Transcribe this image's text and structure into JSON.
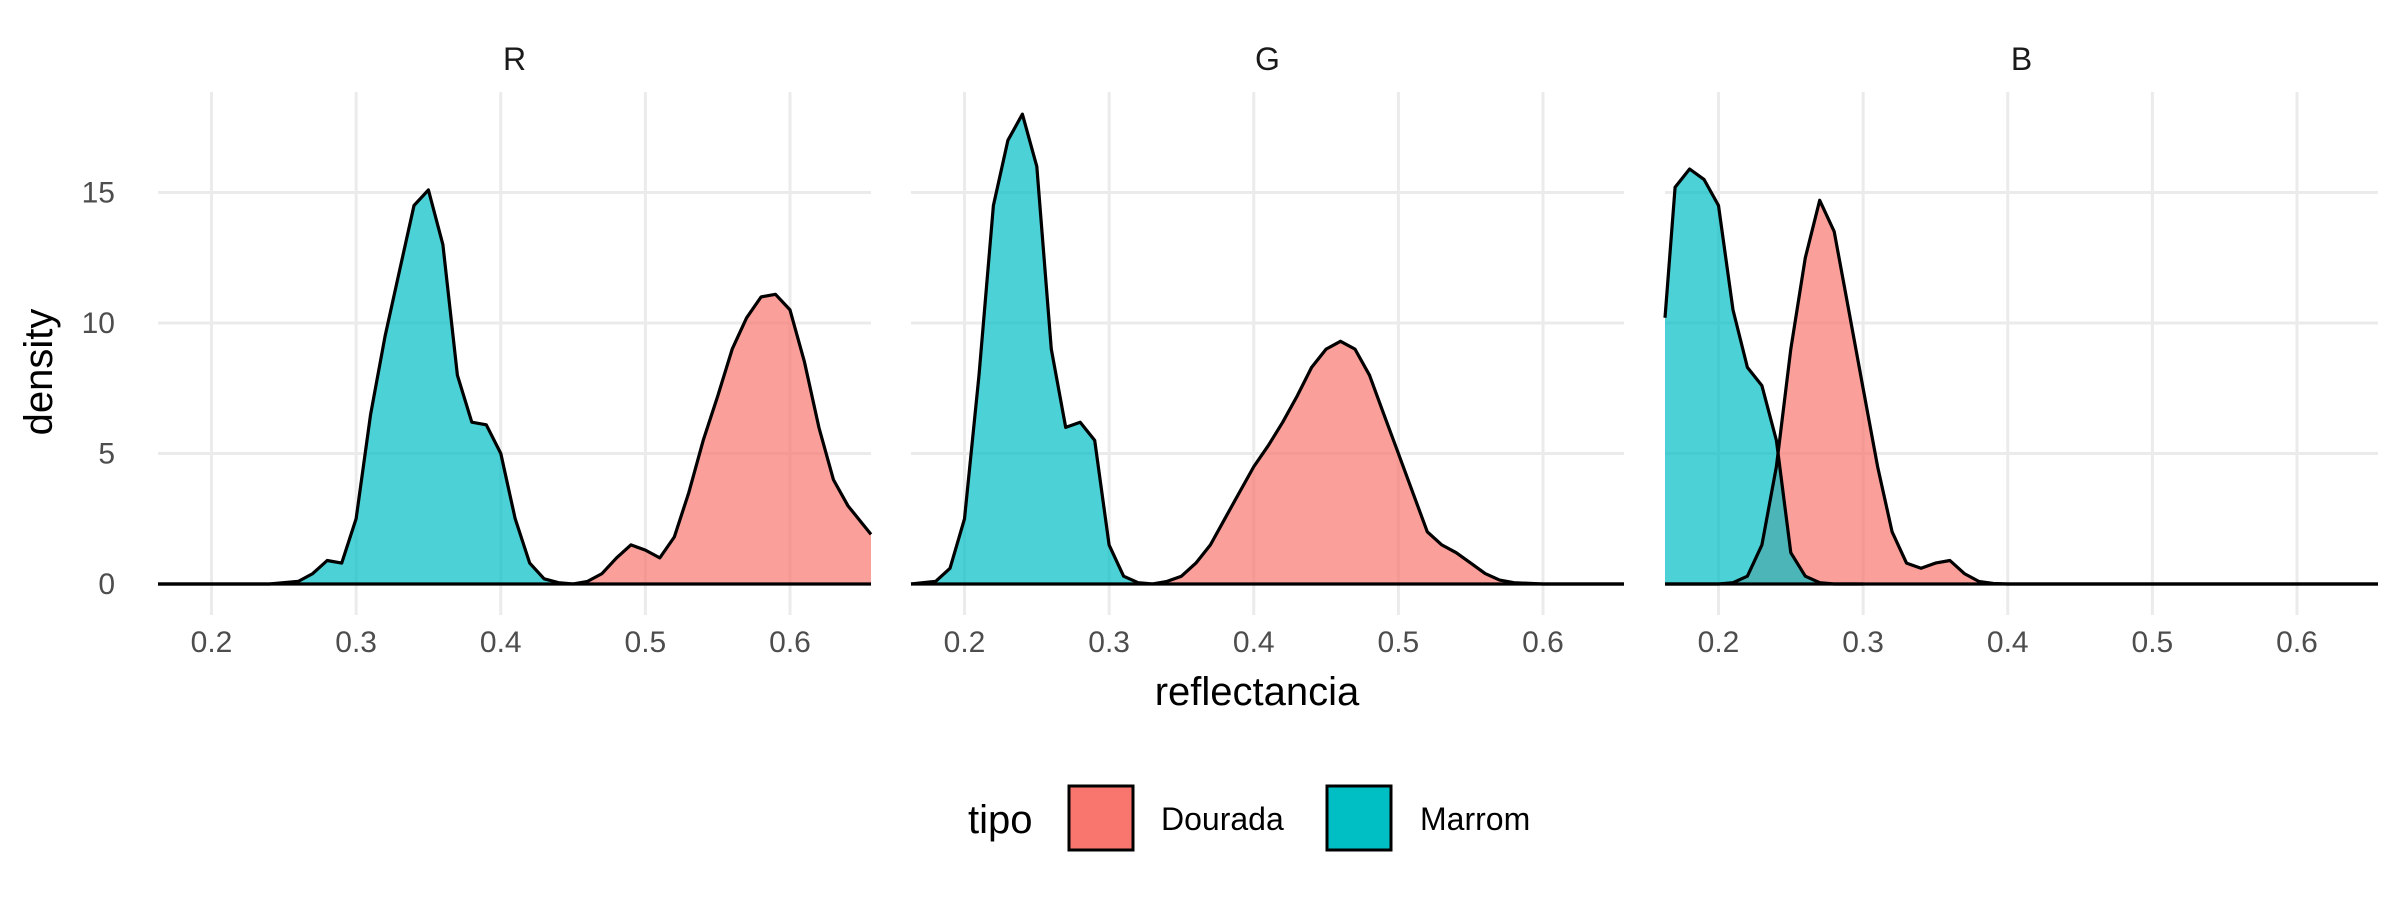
{
  "chart_data": {
    "type": "area",
    "xlabel": "reflectancia",
    "ylabel": "density",
    "ylim": [
      0,
      18.5
    ],
    "xlim": [
      0.163,
      0.656
    ],
    "x_ticks": [
      0.2,
      0.3,
      0.4,
      0.5,
      0.6
    ],
    "x_tick_labels": [
      "0.2",
      "0.3",
      "0.4",
      "0.5",
      "0.6"
    ],
    "y_ticks": [
      0,
      5,
      10,
      15
    ],
    "y_tick_labels": [
      "0",
      "5",
      "10",
      "15"
    ],
    "grid": true,
    "legend": {
      "title": "tipo",
      "position": "bottom",
      "entries": [
        {
          "label": "Dourada",
          "color": "#F8766D"
        },
        {
          "label": "Marrom",
          "color": "#00BFC4"
        }
      ]
    },
    "panels": [
      {
        "name": "R",
        "series": [
          {
            "name": "Dourada",
            "color": "#F8766D",
            "x": [
              0.45,
              0.46,
              0.47,
              0.48,
              0.49,
              0.5,
              0.51,
              0.52,
              0.53,
              0.54,
              0.55,
              0.56,
              0.57,
              0.58,
              0.59,
              0.6,
              0.61,
              0.62,
              0.63,
              0.64,
              0.656
            ],
            "y": [
              0,
              0.1,
              0.4,
              1.0,
              1.5,
              1.3,
              1.0,
              1.8,
              3.5,
              5.5,
              7.2,
              9.0,
              10.2,
              11.0,
              11.1,
              10.5,
              8.5,
              6.0,
              4.0,
              3.0,
              1.9
            ]
          },
          {
            "name": "Marrom",
            "color": "#00BFC4",
            "x": [
              0.163,
              0.24,
              0.26,
              0.27,
              0.28,
              0.29,
              0.3,
              0.31,
              0.32,
              0.33,
              0.34,
              0.35,
              0.36,
              0.37,
              0.38,
              0.39,
              0.4,
              0.41,
              0.42,
              0.43,
              0.44,
              0.45
            ],
            "y": [
              0,
              0,
              0.1,
              0.4,
              0.9,
              0.8,
              2.5,
              6.5,
              9.5,
              12.0,
              14.5,
              15.1,
              13.0,
              8.0,
              6.2,
              6.1,
              5.0,
              2.5,
              0.8,
              0.2,
              0.05,
              0
            ]
          }
        ]
      },
      {
        "name": "G",
        "series": [
          {
            "name": "Dourada",
            "color": "#F8766D",
            "x": [
              0.33,
              0.34,
              0.35,
              0.36,
              0.37,
              0.38,
              0.39,
              0.4,
              0.41,
              0.42,
              0.43,
              0.44,
              0.45,
              0.46,
              0.47,
              0.48,
              0.49,
              0.5,
              0.51,
              0.52,
              0.53,
              0.54,
              0.55,
              0.56,
              0.57,
              0.58,
              0.6,
              0.656
            ],
            "y": [
              0,
              0.1,
              0.3,
              0.8,
              1.5,
              2.5,
              3.5,
              4.5,
              5.3,
              6.2,
              7.2,
              8.3,
              9.0,
              9.3,
              9.0,
              8.0,
              6.5,
              5.0,
              3.5,
              2.0,
              1.5,
              1.2,
              0.8,
              0.4,
              0.15,
              0.05,
              0,
              0
            ]
          },
          {
            "name": "Marrom",
            "color": "#00BFC4",
            "x": [
              0.163,
              0.18,
              0.19,
              0.2,
              0.21,
              0.22,
              0.23,
              0.24,
              0.25,
              0.26,
              0.27,
              0.28,
              0.29,
              0.3,
              0.31,
              0.32,
              0.33
            ],
            "y": [
              0,
              0.1,
              0.6,
              2.5,
              8.0,
              14.5,
              17.0,
              18.0,
              16.0,
              9.0,
              6.0,
              6.2,
              5.5,
              1.5,
              0.3,
              0.05,
              0
            ]
          }
        ]
      },
      {
        "name": "B",
        "series": [
          {
            "name": "Dourada",
            "color": "#F8766D",
            "x": [
              0.163,
              0.2,
              0.21,
              0.22,
              0.23,
              0.24,
              0.25,
              0.26,
              0.27,
              0.28,
              0.29,
              0.3,
              0.31,
              0.32,
              0.33,
              0.34,
              0.35,
              0.36,
              0.37,
              0.38,
              0.39,
              0.4,
              0.656
            ],
            "y": [
              0,
              0,
              0.05,
              0.3,
              1.5,
              4.5,
              9.0,
              12.5,
              14.7,
              13.5,
              10.5,
              7.5,
              4.5,
              2.0,
              0.8,
              0.6,
              0.8,
              0.9,
              0.4,
              0.1,
              0.02,
              0,
              0
            ]
          },
          {
            "name": "Marrom",
            "color": "#00BFC4",
            "x": [
              0.163,
              0.17,
              0.18,
              0.19,
              0.2,
              0.21,
              0.22,
              0.23,
              0.24,
              0.25,
              0.26,
              0.27,
              0.28,
              0.29,
              0.3
            ],
            "y": [
              10.2,
              15.2,
              15.9,
              15.5,
              14.5,
              10.5,
              8.3,
              7.6,
              5.5,
              1.2,
              0.3,
              0.05,
              0,
              0,
              0
            ]
          }
        ]
      }
    ]
  }
}
